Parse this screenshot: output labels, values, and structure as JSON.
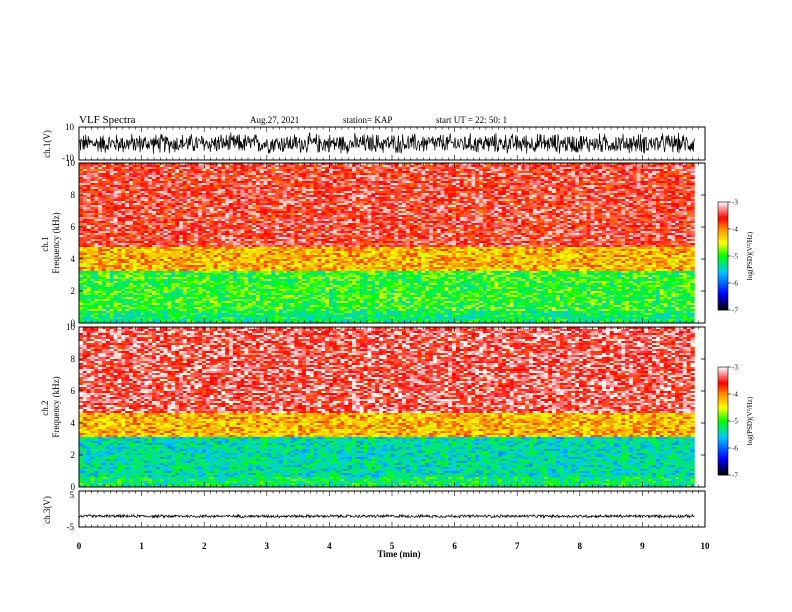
{
  "header": {
    "title": "VLF Spectra",
    "date": "Aug.27, 2021",
    "station": "station= KAP",
    "start": "start  UT =   22: 50: 1"
  },
  "colors": {
    "background": "#ffffff",
    "axis": "#000000",
    "colormap": [
      "#ffffff",
      "#ff0000",
      "#ffcc00",
      "#00ff00",
      "#0000ff",
      "#000000"
    ]
  },
  "chart_data": [
    {
      "type": "line",
      "name": "ch1-waveform",
      "ylabel": "ch.1(V)",
      "ylim": [
        -10,
        10
      ],
      "yticks": [
        "10",
        "-10"
      ],
      "xlim": [
        0,
        10
      ],
      "description_values": {
        "approx_center": 0,
        "approx_amplitude": 7
      }
    },
    {
      "type": "heatmap",
      "name": "ch1-spectrogram",
      "ylabel": "ch.1\nFrequency  (kHz)",
      "ylabel_lines": [
        "ch.1",
        "Frequency  (kHz)"
      ],
      "ylim": [
        0,
        10
      ],
      "yticks": [
        "0",
        "2",
        "4",
        "6",
        "8",
        "10"
      ],
      "xlim": [
        0,
        9.83
      ],
      "colorbar": {
        "label": "log(PSD)(V²/Hz)",
        "ticks": [
          "-3",
          "-4",
          "-5",
          "-6",
          "-7"
        ],
        "range": [
          -7,
          -3
        ]
      },
      "bands": [
        {
          "from_khz": 0.0,
          "to_khz": 0.8,
          "level": -5.2
        },
        {
          "from_khz": 0.8,
          "to_khz": 3.2,
          "level": -5.0
        },
        {
          "from_khz": 3.2,
          "to_khz": 4.8,
          "level": -4.2
        },
        {
          "from_khz": 4.8,
          "to_khz": 10.0,
          "level": -3.5
        }
      ]
    },
    {
      "type": "heatmap",
      "name": "ch2-spectrogram",
      "ylabel": "ch.2\nFrequency  (kHz)",
      "ylabel_lines": [
        "ch.2",
        "Frequency  (kHz)"
      ],
      "ylim": [
        0,
        10
      ],
      "yticks": [
        "0",
        "2",
        "4",
        "6",
        "8",
        "10"
      ],
      "xlim": [
        0,
        9.83
      ],
      "colorbar": {
        "label": "log(PSD)(V²/Hz)",
        "ticks": [
          "-3",
          "-4",
          "-5",
          "-6",
          "-7"
        ],
        "range": [
          -7,
          -3
        ]
      },
      "bands": [
        {
          "from_khz": 0.0,
          "to_khz": 0.6,
          "level": -5.2
        },
        {
          "from_khz": 0.6,
          "to_khz": 3.1,
          "level": -5.4
        },
        {
          "from_khz": 3.1,
          "to_khz": 4.6,
          "level": -4.2
        },
        {
          "from_khz": 4.6,
          "to_khz": 10.0,
          "level": -3.4
        }
      ]
    },
    {
      "type": "line",
      "name": "ch3-waveform",
      "ylabel": "ch.3(V)",
      "ylim": [
        -5,
        5
      ],
      "yticks": [
        "5",
        "-5"
      ],
      "xlim": [
        0,
        10
      ],
      "description_values": {
        "approx_center": -2,
        "approx_amplitude": 0.5
      }
    }
  ],
  "xaxis": {
    "label": "Time  (min)",
    "ticks": [
      "0",
      "1",
      "2",
      "3",
      "4",
      "5",
      "6",
      "7",
      "8",
      "9",
      "10"
    ]
  }
}
